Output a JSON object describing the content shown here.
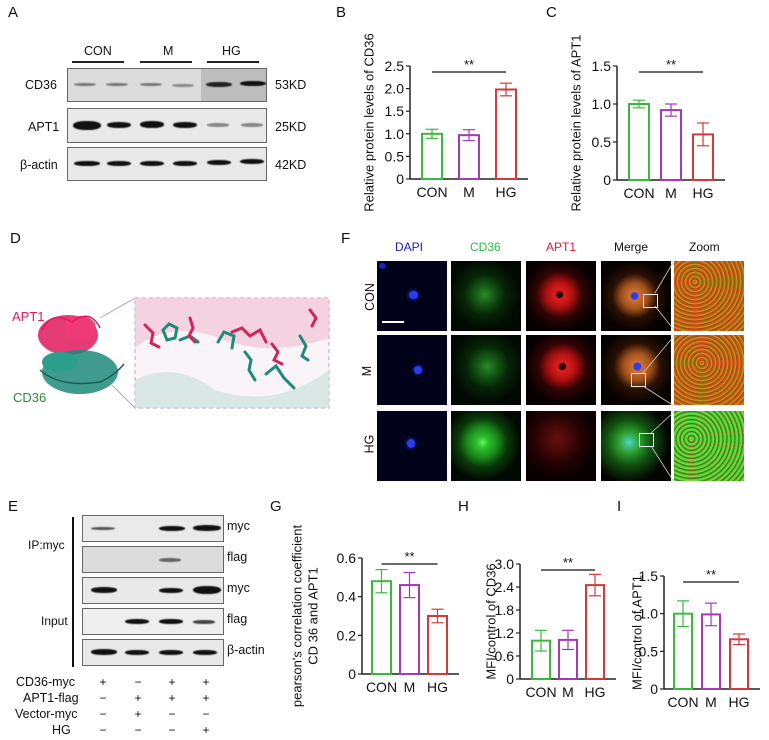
{
  "panels": {
    "A": {
      "letter": "A",
      "groups": [
        "CON",
        "M",
        "HG"
      ],
      "rows": [
        {
          "protein": "CD36",
          "size": "53KD"
        },
        {
          "protein": "APT1",
          "size": "25KD"
        },
        {
          "protein": "β-actin",
          "size": "42KD"
        }
      ]
    },
    "B": {
      "letter": "B"
    },
    "C": {
      "letter": "C"
    },
    "D": {
      "letter": "D",
      "labels": {
        "apt1": "APT1",
        "cd36": "CD36"
      },
      "colors": {
        "apt1": "#e0195a",
        "cd36": "#1f8a7a"
      }
    },
    "E": {
      "letter": "E",
      "sections": [
        {
          "name": "IP:myc",
          "rows": [
            "myc",
            "flag"
          ]
        },
        {
          "name": "Input",
          "rows": [
            "myc",
            "flag",
            "β-actin"
          ]
        }
      ],
      "conditions": [
        {
          "label": "CD36-myc",
          "values": [
            "+",
            "−",
            "+",
            "+"
          ]
        },
        {
          "label": "APT1-flag",
          "values": [
            "−",
            "+",
            "+",
            "+"
          ]
        },
        {
          "label": "Vector-myc",
          "values": [
            "−",
            "+",
            "−",
            "−"
          ]
        },
        {
          "label": "HG",
          "values": [
            "−",
            "−",
            "−",
            "+"
          ]
        }
      ]
    },
    "F": {
      "letter": "F",
      "columns": [
        {
          "label": "DAPI",
          "color": "#1a1ab4"
        },
        {
          "label": "CD36",
          "color": "#22c23a"
        },
        {
          "label": "APT1",
          "color": "#e0182a"
        },
        {
          "label": "Merge",
          "color": "#111111"
        },
        {
          "label": "Zoom",
          "color": "#111111"
        }
      ],
      "rows": [
        "CON",
        "M",
        "HG"
      ]
    },
    "G": {
      "letter": "G"
    },
    "H": {
      "letter": "H"
    },
    "I": {
      "letter": "I"
    }
  },
  "chart_data": [
    {
      "id": "B",
      "type": "bar",
      "title": "",
      "categories": [
        "CON",
        "M",
        "HG"
      ],
      "values": [
        1.0,
        0.97,
        1.98
      ],
      "errors": [
        0.1,
        0.12,
        0.14
      ],
      "colors": [
        "#3cb93c",
        "#a43ab8",
        "#d43a3a"
      ],
      "xlabel": "",
      "ylabel": "Relative protein levels of CD36",
      "ylim": [
        0,
        2.5
      ],
      "yticks": [
        "0",
        "0.5",
        "1.0",
        "1.5",
        "2.0",
        "2.5"
      ],
      "annotation": "**",
      "grid": false
    },
    {
      "id": "C",
      "type": "bar",
      "title": "",
      "categories": [
        "CON",
        "M",
        "HG"
      ],
      "values": [
        1.0,
        0.92,
        0.6
      ],
      "errors": [
        0.05,
        0.08,
        0.15
      ],
      "colors": [
        "#3cb93c",
        "#a43ab8",
        "#d43a3a"
      ],
      "xlabel": "",
      "ylabel": "Relative protein levels of APT1",
      "ylim": [
        0,
        1.5
      ],
      "yticks": [
        "0",
        "0.5",
        "1.0",
        "1.5"
      ],
      "annotation": "**",
      "grid": false
    },
    {
      "id": "G",
      "type": "bar",
      "title": "",
      "categories": [
        "CON",
        "M",
        "HG"
      ],
      "values": [
        0.48,
        0.46,
        0.3
      ],
      "errors": [
        0.06,
        0.065,
        0.035
      ],
      "colors": [
        "#3cb93c",
        "#a43ab8",
        "#d43a3a"
      ],
      "xlabel": "",
      "ylabel": "pearson's correlation coefficient CD 36 and APT1",
      "ylabel_lines": [
        "pearson's correlation coefficient",
        "CD 36 and APT1"
      ],
      "ylim": [
        0,
        0.6
      ],
      "yticks": [
        "0",
        "0.2",
        "0.4",
        "0.6"
      ],
      "annotation": "**",
      "grid": false
    },
    {
      "id": "H",
      "type": "bar",
      "title": "",
      "categories": [
        "CON",
        "M",
        "HG"
      ],
      "values": [
        1.0,
        1.02,
        2.45
      ],
      "errors": [
        0.27,
        0.25,
        0.28
      ],
      "colors": [
        "#3cb93c",
        "#a43ab8",
        "#d43a3a"
      ],
      "xlabel": "",
      "ylabel": "MFI/control of CD36",
      "ylim": [
        0,
        3.0
      ],
      "yticks": [
        "0",
        "0.6",
        "1.2",
        "1.8",
        "2.4",
        "3.0"
      ],
      "annotation": "**",
      "grid": false
    },
    {
      "id": "I",
      "type": "bar",
      "title": "",
      "categories": [
        "CON",
        "M",
        "HG"
      ],
      "values": [
        1.0,
        0.99,
        0.66
      ],
      "errors": [
        0.17,
        0.15,
        0.07
      ],
      "colors": [
        "#3cb93c",
        "#a43ab8",
        "#d43a3a"
      ],
      "xlabel": "",
      "ylabel": "MFI/control of APT1",
      "ylim": [
        0,
        1.5
      ],
      "yticks": [
        "0",
        "0.5",
        "1.0",
        "1.5"
      ],
      "annotation": "**",
      "grid": false
    }
  ]
}
